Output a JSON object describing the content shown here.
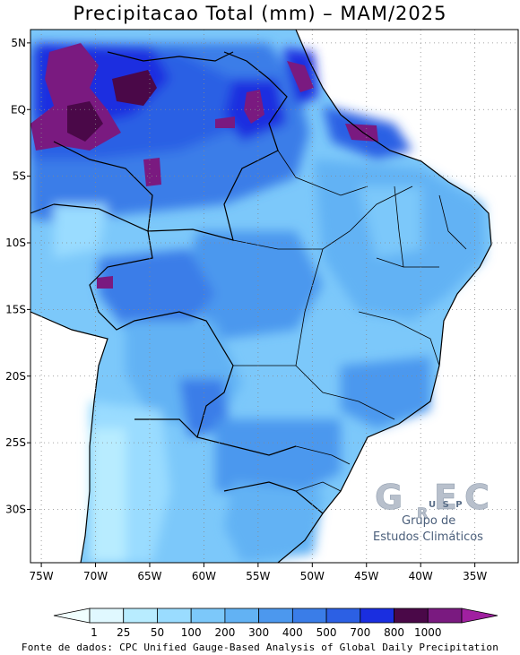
{
  "title": "Precipitacao Total (mm) – MAM/2025",
  "source": "Fonte de dados: CPC Unified Gauge-Based Analysis of Global Daily Precipitation",
  "map": {
    "lon_range": [
      -76,
      -31
    ],
    "lat_range": [
      -34,
      6
    ],
    "lon_ticks": [
      "75W",
      "70W",
      "65W",
      "60W",
      "55W",
      "50W",
      "45W",
      "40W",
      "35W"
    ],
    "lat_ticks": [
      "5N",
      "EQ",
      "5S",
      "10S",
      "15S",
      "20S",
      "25S",
      "30S"
    ]
  },
  "legend": {
    "labels": [
      "1",
      "25",
      "50",
      "100",
      "200",
      "300",
      "400",
      "500",
      "700",
      "800",
      "1000"
    ],
    "colors": [
      "#e0f8ff",
      "#b8ecff",
      "#9adcff",
      "#7cc8fa",
      "#62b2f4",
      "#4c98ee",
      "#3a7de8",
      "#2c60e4",
      "#1a2ee0",
      "#4a0848",
      "#7a1a80"
    ],
    "below_color": "#f0ffff",
    "above_color": "#a020a0"
  },
  "logo": {
    "letters": [
      "G",
      "R",
      "E",
      "C"
    ],
    "usp": "U S P",
    "line1": "Grupo de",
    "line2": "Estudos Climáticos"
  }
}
